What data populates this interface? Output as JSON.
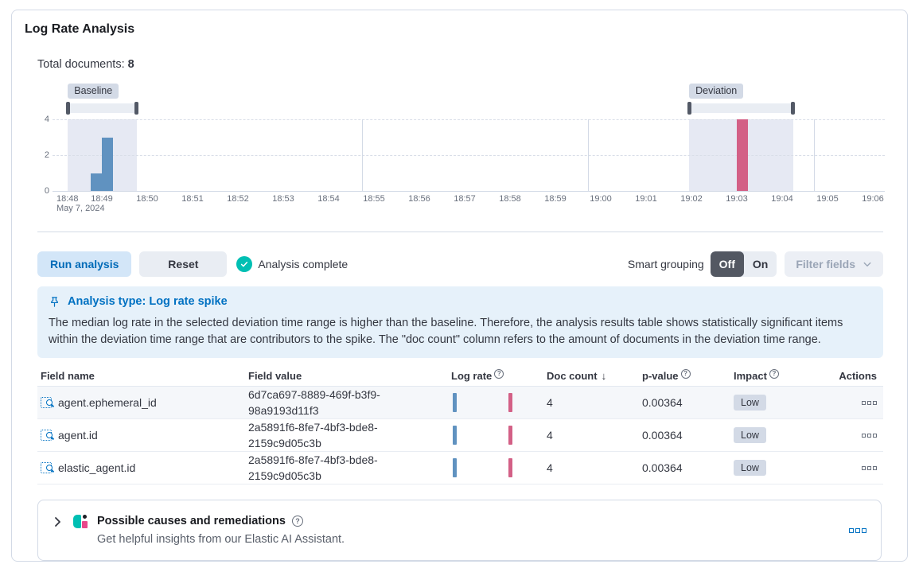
{
  "panel_title": "Log Rate Analysis",
  "summary": {
    "label": "Total documents:",
    "value": "8"
  },
  "chart_data": {
    "type": "bar",
    "x_ticks": [
      "18:48",
      "18:49",
      "18:50",
      "18:51",
      "18:52",
      "18:53",
      "18:54",
      "18:55",
      "18:56",
      "18:57",
      "18:58",
      "18:59",
      "19:00",
      "19:01",
      "19:02",
      "19:03",
      "19:04",
      "19:05",
      "19:06"
    ],
    "date_sublabel": "May 7, 2024",
    "y_ticks": [
      0,
      2,
      4
    ],
    "ylim": [
      0,
      4
    ],
    "bucket_minutes": 0.25,
    "series": [
      {
        "name": "baseline",
        "color": "#6092c0",
        "bars": [
          {
            "start_min": 0.75,
            "time": "18:48:45",
            "value": 1
          },
          {
            "start_min": 1.0,
            "time": "18:49:00",
            "value": 3
          }
        ]
      },
      {
        "name": "deviation",
        "color": "#d36086",
        "bars": [
          {
            "start_min": 15.0,
            "time": "19:03:00",
            "value": 4
          }
        ]
      }
    ],
    "brushes": [
      {
        "label": "Baseline",
        "from_min": 0.25,
        "to_min": 1.78
      },
      {
        "label": "Deviation",
        "from_min": 13.95,
        "to_min": 16.25
      }
    ],
    "vertical_gridlines_min": [
      6.74,
      11.72,
      16.7
    ]
  },
  "toolbar": {
    "run_label": "Run analysis",
    "reset_label": "Reset",
    "status_label": "Analysis complete",
    "smart_grouping_label": "Smart grouping",
    "off_label": "Off",
    "on_label": "On",
    "filter_fields_label": "Filter fields"
  },
  "callout": {
    "title": "Analysis type: Log rate spike",
    "body": "The median log rate in the selected deviation time range is higher than the baseline. Therefore, the analysis results table shows statistically significant items within the deviation time range that are contributors to the spike. The \"doc count\" column refers to the amount of documents in the deviation time range."
  },
  "table": {
    "columns": {
      "field_name": "Field name",
      "field_value": "Field value",
      "log_rate": "Log rate",
      "doc_count": "Doc count",
      "p_value": "p-value",
      "impact": "Impact",
      "actions": "Actions"
    },
    "sort": {
      "column": "doc_count",
      "direction": "desc",
      "arrow": "↓"
    },
    "rows": [
      {
        "field_name": "agent.ephemeral_id",
        "field_value": "6d7ca697-8889-469f-b3f9-98a9193d11f3",
        "doc_count": "4",
        "p_value": "0.00364",
        "impact": "Low"
      },
      {
        "field_name": "agent.id",
        "field_value": "2a5891f6-8fe7-4bf3-bde8-2159c9d05c3b",
        "doc_count": "4",
        "p_value": "0.00364",
        "impact": "Low"
      },
      {
        "field_name": "elastic_agent.id",
        "field_value": "2a5891f6-8fe7-4bf3-bde8-2159c9d05c3b",
        "doc_count": "4",
        "p_value": "0.00364",
        "impact": "Low"
      }
    ]
  },
  "footer_panel": {
    "title": "Possible causes and remediations",
    "subtitle": "Get helpful insights from our Elastic AI Assistant."
  },
  "colors": {
    "primary_blue": "#0071c2",
    "success_teal": "#00bfb3",
    "baseline_bar": "#6092c0",
    "deviation_bar": "#d36086",
    "badge_bg": "#d3dae6",
    "callout_bg": "#e6f1fa",
    "off_toggle_bg": "#535862"
  }
}
